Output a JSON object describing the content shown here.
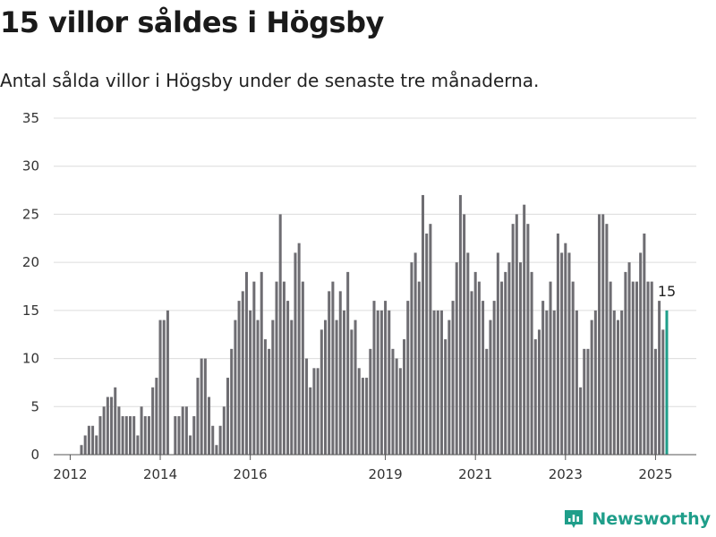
{
  "header": {
    "title": "15 villor såldes i Högsby",
    "subtitle": "Antal sålda villor i Högsby under de senaste tre månaderna."
  },
  "brand": {
    "name": "Newsworthy",
    "icon": "newsworthy-logo-icon",
    "color": "#1f9e8a"
  },
  "chart_data": {
    "type": "bar",
    "title": "15 villor såldes i Högsby",
    "subtitle": "Antal sålda villor i Högsby under de senaste tre månaderna.",
    "xlabel": "",
    "ylabel": "",
    "ylim": [
      0,
      35
    ],
    "yticks": [
      0,
      5,
      10,
      15,
      20,
      25,
      30,
      35
    ],
    "xticks": [
      "2012",
      "2014",
      "2016",
      "2019",
      "2021",
      "2023",
      "2025"
    ],
    "x_start": "2012-04",
    "x_end": "2025-02",
    "frequency": "monthly (rolling three-month totals)",
    "grid": true,
    "bar_color": "#6e6d72",
    "highlight_color": "#1f9e8a",
    "highlight_label": "15",
    "values": [
      1,
      2,
      3,
      3,
      2,
      4,
      5,
      6,
      6,
      7,
      5,
      4,
      4,
      4,
      4,
      2,
      5,
      4,
      4,
      7,
      8,
      14,
      14,
      15,
      0,
      4,
      4,
      5,
      5,
      2,
      4,
      8,
      10,
      10,
      6,
      3,
      1,
      3,
      5,
      8,
      11,
      14,
      16,
      17,
      19,
      15,
      18,
      14,
      19,
      12,
      11,
      14,
      18,
      25,
      18,
      16,
      14,
      21,
      22,
      18,
      10,
      7,
      9,
      9,
      13,
      14,
      17,
      18,
      14,
      17,
      15,
      19,
      13,
      14,
      9,
      8,
      8,
      11,
      16,
      15,
      15,
      16,
      15,
      11,
      10,
      9,
      12,
      16,
      20,
      21,
      18,
      27,
      23,
      24,
      15,
      15,
      15,
      12,
      14,
      16,
      20,
      27,
      25,
      21,
      17,
      19,
      18,
      16,
      11,
      14,
      16,
      21,
      18,
      19,
      20,
      24,
      25,
      20,
      26,
      24,
      19,
      12,
      13,
      16,
      15,
      18,
      15,
      23,
      21,
      22,
      21,
      18,
      15,
      7,
      11,
      11,
      14,
      15,
      25,
      25,
      24,
      18,
      15,
      14,
      15,
      19,
      20,
      18,
      18,
      21,
      23,
      18,
      18,
      11,
      16,
      13,
      15
    ]
  }
}
